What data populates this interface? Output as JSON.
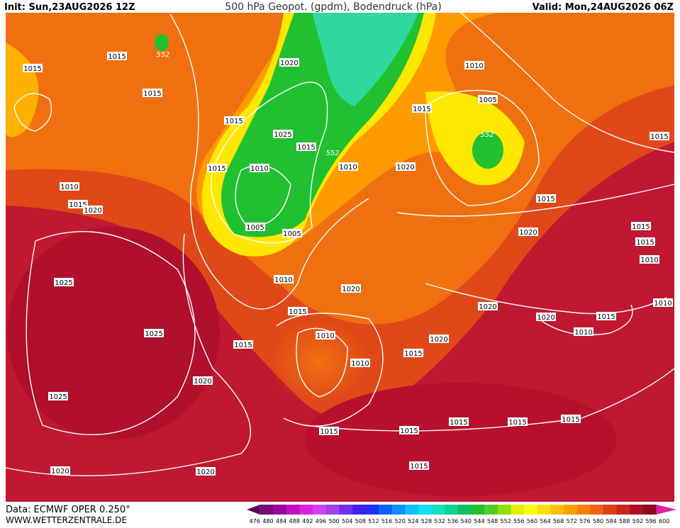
{
  "header": {
    "init": "Init: Sun,23AUG2026 12Z",
    "title": "500 hPa Geopot. (gpdm), Bodendruck (hPa)",
    "valid": "Valid: Mon,24AUG2026 06Z"
  },
  "isobar_labels": [
    "1015",
    "1015",
    "1015",
    "552",
    "1020",
    "1015",
    "1025",
    "1015",
    "552",
    "1015",
    "1010",
    "1010",
    "1020",
    "1005",
    "1005",
    "1010",
    "1015",
    "1020",
    "1025",
    "1010",
    "1020",
    "1015",
    "1010",
    "1015",
    "1025",
    "1020",
    "1025",
    "1010",
    "1015",
    "1020",
    "1015",
    "1015",
    "1015",
    "1015",
    "1015",
    "1015",
    "1020",
    "1020",
    "1010",
    "1005",
    "1015",
    "552",
    "1015",
    "1015",
    "1020",
    "1015",
    "1015",
    "1010",
    "1020",
    "1020",
    "1015",
    "1010",
    "1010"
  ],
  "footer": {
    "source": "Data: ECMWF OPER 0.250°",
    "site": "WWW.WETTERZENTRALE.DE"
  },
  "colorbar": {
    "labels": [
      476,
      480,
      484,
      488,
      492,
      496,
      500,
      504,
      508,
      512,
      516,
      520,
      524,
      528,
      532,
      536,
      540,
      544,
      548,
      552,
      556,
      560,
      564,
      568,
      572,
      576,
      580,
      584,
      588,
      592,
      596,
      600
    ],
    "colors": [
      "#5a0a5a",
      "#7a0a7a",
      "#9a0a9a",
      "#c010c0",
      "#e020e0",
      "#d040f0",
      "#a040f0",
      "#7030f0",
      "#4020f0",
      "#2030ff",
      "#1060ff",
      "#1090ff",
      "#10c0ff",
      "#10e0f0",
      "#10e0c0",
      "#10d090",
      "#10c060",
      "#20c030",
      "#50d020",
      "#90e010",
      "#e0f000",
      "#ffff00",
      "#ffe000",
      "#ffc000",
      "#ffa000",
      "#ff8000",
      "#f06010",
      "#e04010",
      "#d02020",
      "#b01020",
      "#900a20",
      "#e020a0"
    ]
  }
}
